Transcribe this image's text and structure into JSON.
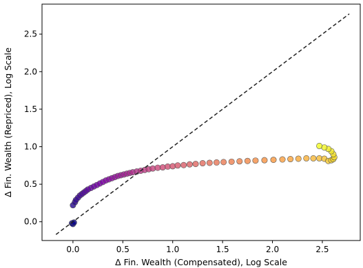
{
  "chart_data": {
    "type": "scatter",
    "xlabel": "Δ Fin. Wealth (Compensated), Log Scale",
    "ylabel": "Δ Fin. Wealth (Repriced), Log Scale",
    "xlim": [
      -0.31,
      2.88
    ],
    "ylim": [
      -0.25,
      2.9
    ],
    "x_ticks": [
      {
        "value": 0.0,
        "label": "0.0"
      },
      {
        "value": 0.5,
        "label": "0.5"
      },
      {
        "value": 1.0,
        "label": "1.0"
      },
      {
        "value": 1.5,
        "label": "1.5"
      },
      {
        "value": 2.0,
        "label": "2.0"
      },
      {
        "value": 2.5,
        "label": "2.5"
      }
    ],
    "y_ticks": [
      {
        "value": 0.0,
        "label": "0.0"
      },
      {
        "value": 0.5,
        "label": "0.5"
      },
      {
        "value": 1.0,
        "label": "1.0"
      },
      {
        "value": 1.5,
        "label": "1.5"
      },
      {
        "value": 2.0,
        "label": "2.0"
      },
      {
        "value": 2.5,
        "label": "2.5"
      }
    ],
    "grid": false,
    "reference_line": {
      "style": "dashed",
      "color": "#222222",
      "from": [
        -0.17,
        -0.17
      ],
      "to": [
        2.77,
        2.77
      ]
    },
    "colormap": [
      "#0d0887",
      "#7e03a8",
      "#cc4778",
      "#f89540",
      "#f0f921"
    ],
    "points": {
      "x": [
        -0.01,
        0.0,
        0.01,
        0.0,
        0.02,
        0.03,
        0.05,
        0.07,
        0.09,
        0.11,
        0.13,
        0.15,
        0.18,
        0.21,
        0.24,
        0.27,
        0.3,
        0.33,
        0.36,
        0.39,
        0.42,
        0.45,
        0.48,
        0.51,
        0.54,
        0.57,
        0.6,
        0.64,
        0.68,
        0.72,
        0.76,
        0.8,
        0.85,
        0.9,
        0.95,
        1.0,
        1.05,
        1.11,
        1.17,
        1.23,
        1.3,
        1.37,
        1.44,
        1.51,
        1.59,
        1.67,
        1.75,
        1.83,
        1.92,
        2.01,
        2.1,
        2.18,
        2.26,
        2.34,
        2.41,
        2.47,
        2.52,
        2.56,
        2.59,
        2.61,
        2.62,
        2.61,
        2.59,
        2.56,
        2.52,
        2.47
      ],
      "y": [
        -0.02,
        -0.03,
        -0.01,
        0.22,
        0.26,
        0.29,
        0.32,
        0.35,
        0.37,
        0.39,
        0.41,
        0.43,
        0.45,
        0.47,
        0.49,
        0.51,
        0.53,
        0.55,
        0.565,
        0.58,
        0.595,
        0.61,
        0.62,
        0.63,
        0.64,
        0.65,
        0.66,
        0.67,
        0.68,
        0.69,
        0.7,
        0.71,
        0.72,
        0.725,
        0.735,
        0.74,
        0.75,
        0.755,
        0.765,
        0.77,
        0.78,
        0.785,
        0.79,
        0.795,
        0.8,
        0.805,
        0.81,
        0.815,
        0.82,
        0.825,
        0.83,
        0.835,
        0.84,
        0.845,
        0.845,
        0.845,
        0.84,
        0.81,
        0.82,
        0.835,
        0.86,
        0.9,
        0.94,
        0.97,
        0.99,
        1.01
      ]
    }
  }
}
